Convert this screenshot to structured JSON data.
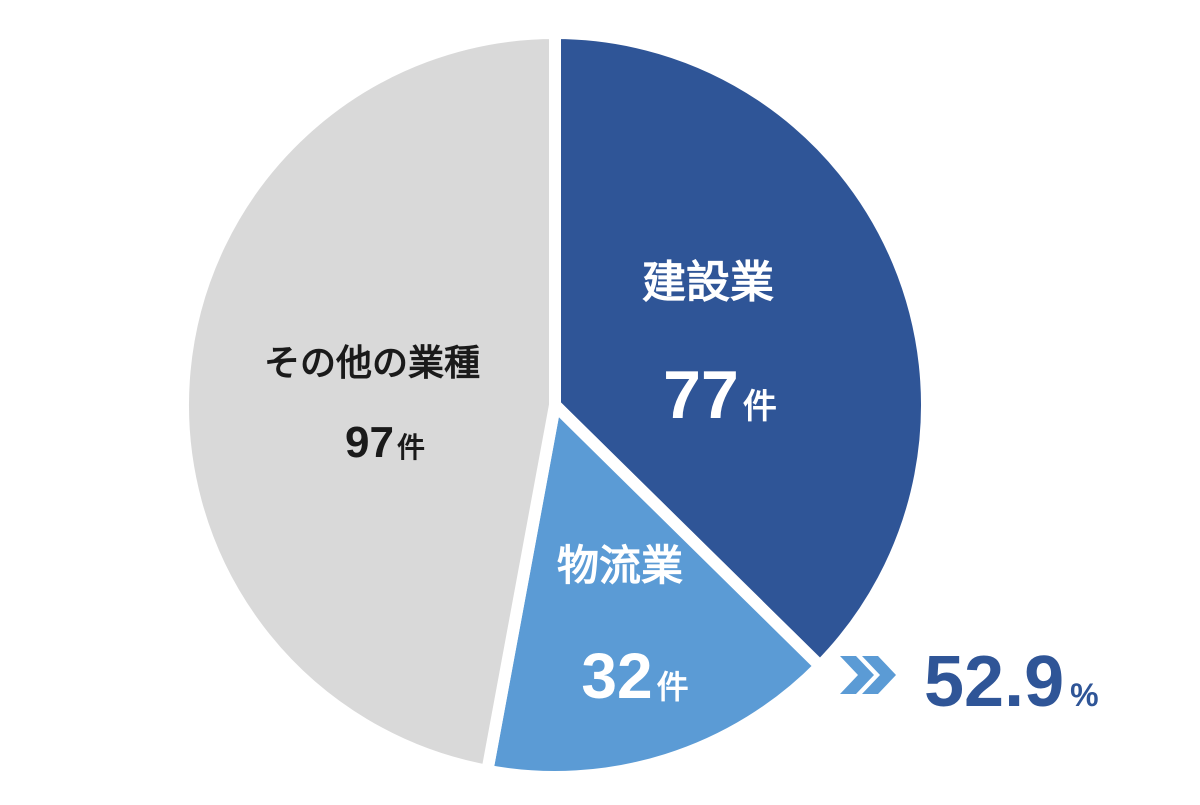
{
  "chart_data": {
    "type": "pie",
    "title": "",
    "unit": "件",
    "slices": [
      {
        "label": "建設業",
        "value": 77,
        "color": "#2f5597",
        "text_color": "#ffffff"
      },
      {
        "label": "物流業",
        "value": 32,
        "color": "#5b9bd5",
        "text_color": "#ffffff"
      },
      {
        "label": "その他の業種",
        "value": 97,
        "color": "#d9d9d9",
        "text_color": "#1a1a1a"
      }
    ],
    "highlight": {
      "value": "52.9",
      "unit": "%",
      "arrow_color": "#5b9bd5",
      "text_color": "#2f5597"
    }
  }
}
